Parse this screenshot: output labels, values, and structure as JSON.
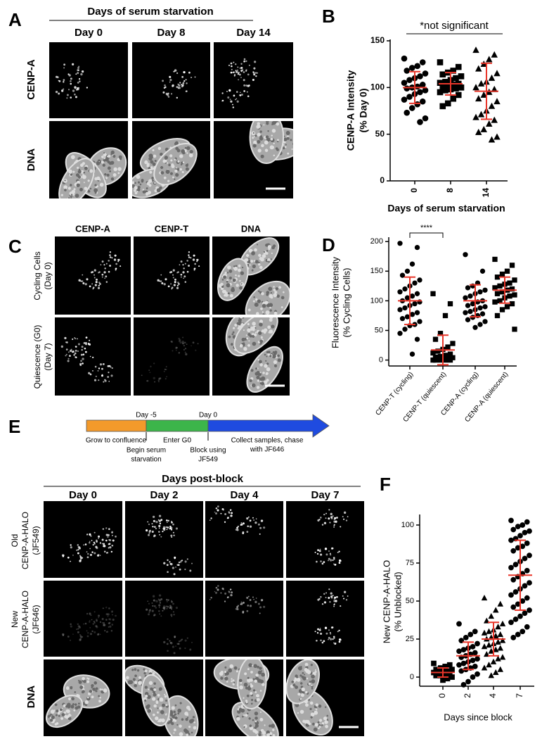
{
  "panels": {
    "A": {
      "label": "A",
      "title": "Days of serum starvation",
      "columns": [
        "Day 0",
        "Day 8",
        "Day 14"
      ],
      "rows": [
        "CENP-A",
        "DNA"
      ]
    },
    "B": {
      "label": "B"
    },
    "C": {
      "label": "C",
      "columns": [
        "CENP-A",
        "CENP-T",
        "DNA"
      ],
      "rows": [
        [
          "Cycling Cells",
          "(Day 0)"
        ],
        [
          "Quiescence (G0)",
          "(Day 7)"
        ]
      ]
    },
    "D": {
      "label": "D"
    },
    "E": {
      "label": "E",
      "timeline": {
        "marks": [
          "Day -5",
          "Day 0"
        ],
        "steps": [
          [
            "Grow to confluence"
          ],
          [
            "Begin serum",
            "starvation"
          ],
          [
            "Enter G0"
          ],
          [
            "Block using",
            "JF549"
          ],
          [
            "Collect samples, chase",
            "with JF646"
          ]
        ]
      },
      "title": "Days post-block",
      "columns": [
        "Day 0",
        "Day 2",
        "Day 4",
        "Day 7"
      ],
      "rows": [
        [
          "Old",
          "CENP-A-HALO",
          "(JF549)"
        ],
        [
          "New",
          "CENP-A-HALO",
          "(JF646)"
        ],
        [
          "DNA"
        ]
      ]
    },
    "F": {
      "label": "F"
    }
  },
  "chart_data": [
    {
      "type": "dot",
      "ylabel": [
        "CENP-A Intensity",
        "(% Day 0)"
      ],
      "xlabel": "Days of serum starvation",
      "annotation": "*not significant",
      "categories": [
        "0",
        "8",
        "14"
      ],
      "markers": [
        "circle",
        "square",
        "triangle"
      ],
      "values": [
        [
          131,
          127,
          123,
          121,
          118,
          115,
          112,
          110,
          108,
          105,
          103,
          101,
          100,
          99,
          97,
          95,
          93,
          90,
          87,
          85,
          82,
          78,
          73,
          67,
          63
        ],
        [
          127,
          122,
          118,
          116,
          114,
          112,
          110,
          108,
          106,
          105,
          104,
          103,
          102,
          101,
          100,
          99,
          98,
          97,
          95,
          92,
          88,
          83,
          80
        ],
        [
          140,
          135,
          130,
          125,
          120,
          115,
          110,
          106,
          104,
          100,
          98,
          95,
          92,
          88,
          85,
          80,
          75,
          71,
          68,
          65,
          61,
          55,
          52,
          47,
          44
        ]
      ],
      "means": [
        100,
        104,
        96
      ],
      "sds": [
        17,
        12,
        30
      ],
      "ylim": [
        0,
        150
      ],
      "yticks": [
        0,
        50,
        100,
        150
      ],
      "color": "#000000",
      "error_color": "#e8362a"
    },
    {
      "type": "dot",
      "ylabel": [
        "Fluorescence Intensity",
        "(% Cycling Cells)"
      ],
      "annotation": "****",
      "categories": [
        "CENP-T (cycling)",
        "CENP-T (quiescent)",
        "CENP-A (cycling)",
        "CENP-A (quiescent)"
      ],
      "markers": [
        "circle",
        "square",
        "circle",
        "square"
      ],
      "values": [
        [
          197,
          190,
          162,
          150,
          143,
          135,
          130,
          125,
          120,
          115,
          112,
          108,
          105,
          100,
          98,
          95,
          92,
          88,
          85,
          80,
          77,
          73,
          70,
          65,
          60,
          58,
          52,
          45,
          35,
          10
        ],
        [
          112,
          95,
          75,
          45,
          35,
          28,
          22,
          18,
          15,
          12,
          10,
          8,
          6,
          5,
          4,
          3,
          2,
          1,
          0,
          0,
          0,
          0,
          0
        ],
        [
          178,
          150,
          130,
          125,
          122,
          118,
          115,
          112,
          108,
          105,
          100,
          98,
          95,
          92,
          90,
          88,
          85,
          82,
          80,
          78,
          75,
          72,
          68,
          65,
          60,
          55
        ],
        [
          170,
          160,
          150,
          145,
          140,
          135,
          130,
          128,
          125,
          122,
          120,
          118,
          115,
          112,
          110,
          108,
          105,
          100,
          98,
          95,
          90,
          85,
          75,
          52
        ]
      ],
      "means": [
        100,
        17,
        100,
        118
      ],
      "sds": [
        40,
        25,
        27,
        22
      ],
      "ylim": [
        -10,
        205
      ],
      "yticks": [
        0,
        50,
        100,
        150,
        200
      ],
      "color": "#000000",
      "error_color": "#e8362a"
    },
    {
      "type": "dot",
      "ylabel": [
        "New CENP-A-HALO",
        "(% Unblocked)"
      ],
      "xlabel": "Days since block",
      "categories": [
        "0",
        "2",
        "4",
        "7"
      ],
      "markers": [
        "square",
        "circle",
        "triangle",
        "circle"
      ],
      "values": [
        [
          9,
          8,
          7,
          6,
          5,
          5,
          4,
          4,
          3,
          3,
          2,
          2,
          1,
          1,
          0,
          -1,
          -2
        ],
        [
          35,
          30,
          28,
          26,
          24,
          22,
          20,
          19,
          18,
          17,
          16,
          15,
          14,
          13,
          12,
          11,
          10,
          9,
          8,
          7,
          6,
          5,
          4,
          2,
          0,
          -3,
          -5
        ],
        [
          52,
          48,
          44,
          40,
          37,
          35,
          33,
          31,
          30,
          29,
          28,
          27,
          26,
          25,
          24,
          23,
          22,
          21,
          20,
          19,
          18,
          17,
          15,
          13,
          12,
          10,
          8,
          6,
          5,
          3,
          1
        ],
        [
          103,
          102,
          100,
          99,
          97,
          96,
          95,
          93,
          91,
          90,
          88,
          86,
          85,
          83,
          80,
          78,
          76,
          74,
          72,
          70,
          68,
          66,
          64,
          62,
          60,
          58,
          56,
          54,
          52,
          50,
          48,
          46,
          44,
          42,
          40,
          38,
          36,
          33,
          30,
          28,
          26
        ]
      ],
      "means": [
        3,
        14,
        25,
        67
      ],
      "sds": [
        3,
        9,
        11,
        23
      ],
      "ylim": [
        -6,
        106
      ],
      "yticks": [
        0,
        25,
        50,
        75,
        100
      ],
      "color": "#000000",
      "error_color": "#e8362a"
    }
  ]
}
